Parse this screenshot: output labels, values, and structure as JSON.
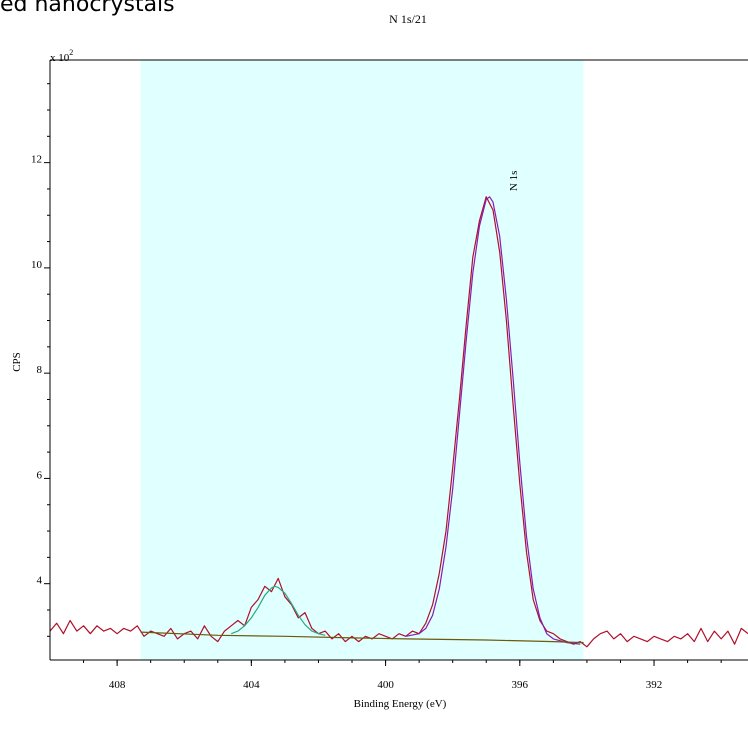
{
  "page_title": "ed nanocrystals",
  "chart_data": {
    "type": "line",
    "title": "N 1s/21",
    "xlabel": "Binding Energy (eV)",
    "ylabel": "CPS",
    "y_multiplier_label": "x 10",
    "y_multiplier_exponent": "2",
    "x_reversed": true,
    "xlim": [
      410,
      389.2
    ],
    "ylim": [
      2.55,
      13.95
    ],
    "x_ticks": [
      408,
      404,
      400,
      396,
      392
    ],
    "x_tick_labels": [
      "408",
      "404",
      "400",
      "396",
      "392"
    ],
    "y_ticks": [
      4,
      6,
      8,
      10,
      12
    ],
    "y_tick_labels": [
      "4",
      "6",
      "8",
      "10",
      "12"
    ],
    "highlight_region": {
      "x_from": 407.3,
      "x_to": 394.1,
      "color": "#e0ffff"
    },
    "peak_annotation": {
      "text": "N 1s",
      "x": 396.2
    },
    "grid": false,
    "series": [
      {
        "color": "#b0102a",
        "values": [
          [
            410.0,
            3.1
          ],
          [
            409.8,
            3.25
          ],
          [
            409.6,
            3.05
          ],
          [
            409.4,
            3.3
          ],
          [
            409.2,
            3.1
          ],
          [
            409.0,
            3.2
          ],
          [
            408.8,
            3.05
          ],
          [
            408.6,
            3.2
          ],
          [
            408.4,
            3.1
          ],
          [
            408.2,
            3.15
          ],
          [
            408.0,
            3.05
          ],
          [
            407.8,
            3.15
          ],
          [
            407.6,
            3.1
          ],
          [
            407.4,
            3.2
          ],
          [
            407.2,
            3.0
          ],
          [
            407.0,
            3.1
          ],
          [
            406.8,
            3.05
          ],
          [
            406.6,
            3.0
          ],
          [
            406.4,
            3.15
          ],
          [
            406.2,
            2.95
          ],
          [
            406.0,
            3.05
          ],
          [
            405.8,
            3.1
          ],
          [
            405.6,
            2.95
          ],
          [
            405.4,
            3.2
          ],
          [
            405.2,
            3.0
          ],
          [
            405.0,
            2.9
          ],
          [
            404.8,
            3.1
          ],
          [
            404.6,
            3.2
          ],
          [
            404.4,
            3.3
          ],
          [
            404.2,
            3.2
          ],
          [
            404.0,
            3.55
          ],
          [
            403.8,
            3.7
          ],
          [
            403.6,
            3.95
          ],
          [
            403.4,
            3.85
          ],
          [
            403.2,
            4.1
          ],
          [
            403.0,
            3.75
          ],
          [
            402.8,
            3.6
          ],
          [
            402.6,
            3.35
          ],
          [
            402.4,
            3.45
          ],
          [
            402.2,
            3.15
          ],
          [
            402.0,
            3.05
          ],
          [
            401.8,
            3.1
          ],
          [
            401.6,
            2.95
          ],
          [
            401.4,
            3.05
          ],
          [
            401.2,
            2.9
          ],
          [
            401.0,
            3.0
          ],
          [
            400.8,
            2.9
          ],
          [
            400.6,
            3.0
          ],
          [
            400.4,
            2.95
          ],
          [
            400.2,
            3.05
          ],
          [
            400.0,
            3.0
          ],
          [
            399.8,
            2.95
          ],
          [
            399.6,
            3.05
          ],
          [
            399.4,
            3.0
          ],
          [
            399.2,
            3.1
          ],
          [
            399.0,
            3.05
          ],
          [
            398.8,
            3.25
          ],
          [
            398.6,
            3.6
          ],
          [
            398.4,
            4.2
          ],
          [
            398.2,
            5.0
          ],
          [
            398.0,
            6.2
          ],
          [
            397.8,
            7.5
          ],
          [
            397.6,
            8.9
          ],
          [
            397.4,
            10.2
          ],
          [
            397.2,
            10.9
          ],
          [
            397.0,
            11.35
          ],
          [
            396.8,
            11.1
          ],
          [
            396.6,
            10.3
          ],
          [
            396.4,
            9.0
          ],
          [
            396.2,
            7.4
          ],
          [
            396.0,
            5.9
          ],
          [
            395.8,
            4.6
          ],
          [
            395.6,
            3.7
          ],
          [
            395.4,
            3.3
          ],
          [
            395.2,
            3.1
          ],
          [
            395.0,
            3.05
          ],
          [
            394.8,
            2.95
          ],
          [
            394.6,
            2.9
          ],
          [
            394.4,
            2.85
          ],
          [
            394.2,
            2.9
          ],
          [
            394.0,
            2.8
          ],
          [
            393.8,
            2.95
          ],
          [
            393.6,
            3.05
          ],
          [
            393.4,
            3.1
          ],
          [
            393.2,
            2.95
          ],
          [
            393.0,
            3.05
          ],
          [
            392.8,
            2.9
          ],
          [
            392.6,
            3.0
          ],
          [
            392.4,
            2.95
          ],
          [
            392.2,
            2.9
          ],
          [
            392.0,
            3.0
          ],
          [
            391.8,
            2.95
          ],
          [
            391.6,
            2.9
          ],
          [
            391.4,
            3.0
          ],
          [
            391.2,
            2.95
          ],
          [
            391.0,
            3.05
          ],
          [
            390.8,
            2.9
          ],
          [
            390.6,
            3.15
          ],
          [
            390.4,
            2.9
          ],
          [
            390.2,
            3.1
          ],
          [
            390.0,
            2.95
          ],
          [
            389.8,
            3.1
          ],
          [
            389.6,
            2.85
          ],
          [
            389.4,
            3.15
          ],
          [
            389.2,
            3.05
          ]
        ]
      },
      {
        "color": "#2aa880",
        "values": [
          [
            404.6,
            3.05
          ],
          [
            404.4,
            3.1
          ],
          [
            404.2,
            3.2
          ],
          [
            404.0,
            3.35
          ],
          [
            403.8,
            3.55
          ],
          [
            403.6,
            3.78
          ],
          [
            403.4,
            3.92
          ],
          [
            403.3,
            3.95
          ],
          [
            403.2,
            3.93
          ],
          [
            403.0,
            3.82
          ],
          [
            402.8,
            3.62
          ],
          [
            402.6,
            3.4
          ],
          [
            402.4,
            3.22
          ],
          [
            402.2,
            3.1
          ],
          [
            402.0,
            3.05
          ],
          [
            401.8,
            3.02
          ]
        ]
      },
      {
        "color": "#8a1ab0",
        "values": [
          [
            399.4,
            3.0
          ],
          [
            399.0,
            3.05
          ],
          [
            398.8,
            3.15
          ],
          [
            398.6,
            3.4
          ],
          [
            398.4,
            3.9
          ],
          [
            398.2,
            4.7
          ],
          [
            398.0,
            5.8
          ],
          [
            397.8,
            7.2
          ],
          [
            397.6,
            8.6
          ],
          [
            397.4,
            9.9
          ],
          [
            397.2,
            10.8
          ],
          [
            397.0,
            11.3
          ],
          [
            396.9,
            11.35
          ],
          [
            396.8,
            11.25
          ],
          [
            396.6,
            10.6
          ],
          [
            396.4,
            9.4
          ],
          [
            396.2,
            7.9
          ],
          [
            396.0,
            6.3
          ],
          [
            395.8,
            4.9
          ],
          [
            395.6,
            3.9
          ],
          [
            395.4,
            3.35
          ],
          [
            395.2,
            3.05
          ],
          [
            395.0,
            2.95
          ],
          [
            394.6,
            2.88
          ],
          [
            394.2,
            2.85
          ]
        ]
      },
      {
        "color": "#6b5a0a",
        "values": [
          [
            407.3,
            3.08
          ],
          [
            405.0,
            3.02
          ],
          [
            403.0,
            3.0
          ],
          [
            401.0,
            2.97
          ],
          [
            399.4,
            2.95
          ],
          [
            397.0,
            2.93
          ],
          [
            395.0,
            2.9
          ],
          [
            394.1,
            2.88
          ]
        ]
      }
    ]
  }
}
